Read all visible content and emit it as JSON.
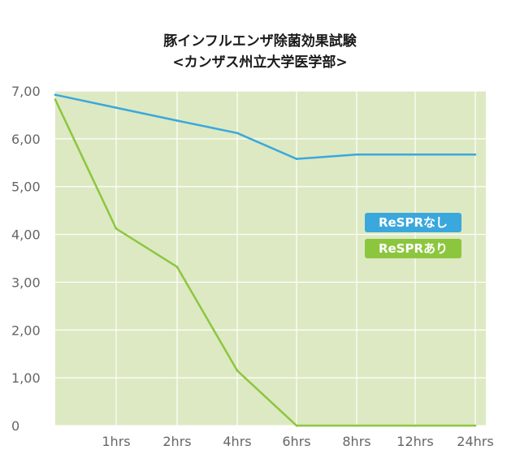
{
  "chart_data": {
    "type": "line",
    "title": "豚インフルエンザ除菌効果試験",
    "subtitle": "<カンザス州立大学医学部>",
    "categories": [
      "",
      "1hrs",
      "2hrs",
      "4hrs",
      "6hrs",
      "8hrs",
      "12hrs",
      "24hrs"
    ],
    "series": [
      {
        "name": "ReSPRなし",
        "color": "#3aa8dc",
        "values": [
          6.92,
          6.65,
          6.38,
          6.12,
          5.58,
          5.67,
          5.67,
          5.67
        ]
      },
      {
        "name": "ReSPRあり",
        "color": "#8cc63f",
        "values": [
          6.82,
          4.12,
          3.32,
          1.15,
          0,
          0,
          0,
          0
        ]
      }
    ],
    "y_ticks": [
      "0",
      "1,00",
      "2,00",
      "3,00",
      "4,00",
      "5,00",
      "6,00",
      "7,00"
    ],
    "ylim": [
      0,
      7
    ],
    "grid": true,
    "background_color": "#dde9c2",
    "legend_position": "right-middle"
  }
}
